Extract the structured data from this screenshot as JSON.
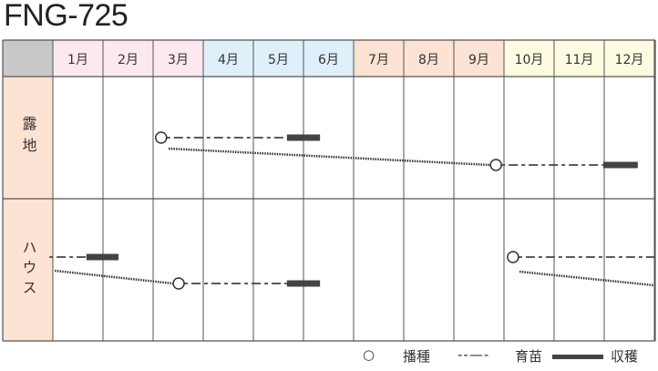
{
  "title": "FNG-725",
  "chart_data": {
    "type": "schedule",
    "months": [
      "1月",
      "2月",
      "3月",
      "4月",
      "5月",
      "6月",
      "7月",
      "8月",
      "9月",
      "10月",
      "11月",
      "12月"
    ],
    "month_colors": [
      "#fce8f1",
      "#fce8f1",
      "#fce8f1",
      "#e0f0fb",
      "#e0f0fb",
      "#e0f0fb",
      "#fde3d3",
      "#fde3d3",
      "#fde3d3",
      "#fefbe0",
      "#fefbe0",
      "#fefbe0"
    ],
    "rows": [
      {
        "label": "露地",
        "crops": [
          {
            "sow": 3.16,
            "nursery_end": 5.67,
            "harvest": [
              5.67,
              6.33
            ]
          },
          {
            "dotted": [
              3.31,
              9.73
            ],
            "sow": 9.84,
            "nursery_end": 11.98,
            "harvest": [
              11.98,
              12.67
            ]
          }
        ]
      },
      {
        "label": "ハウス",
        "crops": [
          {
            "nursery": [
              0.93,
              1.67
            ],
            "harvest": [
              1.67,
              2.31
            ]
          },
          {
            "dotted": [
              1.04,
              3.4
            ],
            "sow": 3.51,
            "nursery_end": 5.67,
            "harvest": [
              5.67,
              6.33
            ]
          },
          {
            "sow": 10.18,
            "nursery_end": 13.0
          },
          {
            "dotted": [
              10.31,
              13.0
            ]
          }
        ]
      }
    ],
    "legend": [
      {
        "symbol": "circle",
        "label": "播種"
      },
      {
        "symbol": "dash",
        "label": "育苗"
      },
      {
        "symbol": "bar",
        "label": "収穫"
      }
    ]
  }
}
